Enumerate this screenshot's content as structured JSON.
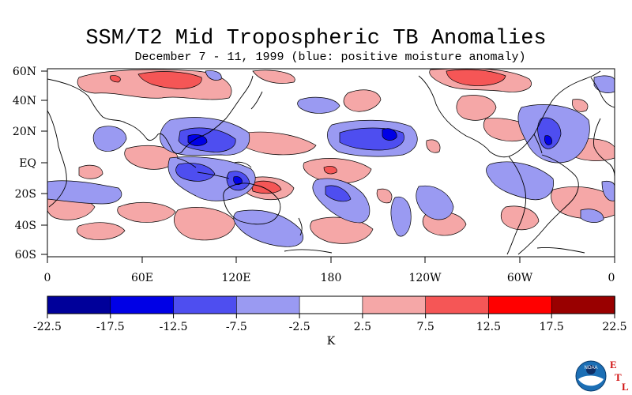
{
  "title": "SSM/T2 Mid Tropospheric TB Anomalies",
  "subtitle": "December 7 - 11, 1999 (blue: positive moisture anomaly)",
  "map": {
    "lat_labels": [
      "60N",
      "40N",
      "20N",
      "EQ",
      "20S",
      "40S",
      "60S"
    ],
    "lon_labels": [
      "0",
      "60E",
      "120E",
      "180",
      "120W",
      "60W",
      "0"
    ]
  },
  "colorbar": {
    "unit": "K",
    "tick_labels": [
      "-22.5",
      "-17.5",
      "-12.5",
      "-7.5",
      "-2.5",
      "2.5",
      "7.5",
      "12.5",
      "17.5",
      "22.5"
    ],
    "colors": [
      "#00009a",
      "#0000e6",
      "#4e4ef0",
      "#9a9af2",
      "#ffffff",
      "#f5a7a7",
      "#f55656",
      "#ff0000",
      "#990000"
    ]
  },
  "logo": {
    "org": "NOAA",
    "letters": [
      "E",
      "T",
      "L"
    ]
  }
}
